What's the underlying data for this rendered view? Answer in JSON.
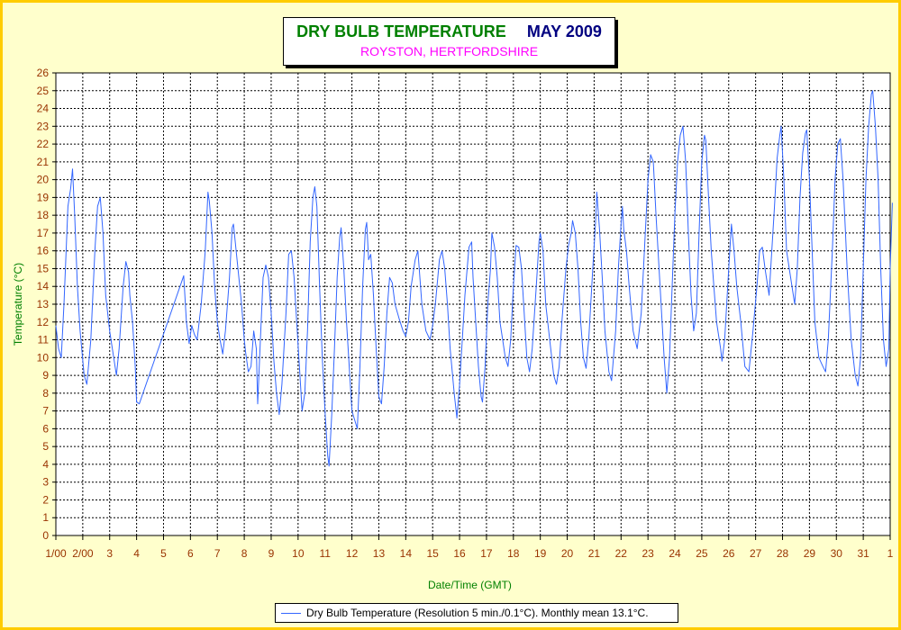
{
  "colors": {
    "frame_border": "#ffcc00",
    "frame_fill": "#ffffcc",
    "series_line": "#3366ff",
    "title_green": "#008000",
    "title_navy": "#000080",
    "subtitle_magenta": "#ff00ff",
    "axis_tick_text": "#993300"
  },
  "chart_data": {
    "type": "line",
    "title": "DRY BULB TEMPERATURE",
    "title_month": "MAY 2009",
    "subtitle": "ROYSTON, HERTFORDSHIRE",
    "xlabel": "Date/Time (GMT)",
    "ylabel": "Temperature (°C)",
    "ylim": [
      0,
      26
    ],
    "xlim": [
      0,
      31
    ],
    "grid": true,
    "legend_position": "bottom-center",
    "yticks": [
      "0",
      "1",
      "2",
      "3",
      "4",
      "5",
      "6",
      "7",
      "8",
      "9",
      "10",
      "11",
      "12",
      "13",
      "14",
      "15",
      "16",
      "17",
      "18",
      "19",
      "20",
      "21",
      "22",
      "23",
      "24",
      "25",
      "26"
    ],
    "xticks": [
      "1/00",
      "2/00",
      "3",
      "4",
      "5",
      "6",
      "7",
      "8",
      "9",
      "10",
      "11",
      "12",
      "13",
      "14",
      "15",
      "16",
      "17",
      "18",
      "19",
      "20",
      "21",
      "22",
      "23",
      "24",
      "25",
      "26",
      "27",
      "28",
      "29",
      "30",
      "31",
      "1"
    ],
    "series": [
      {
        "name": "Dry Bulb Temperature (Resolution 5 min./0.1°C). Monthly mean 13.1°C.",
        "x_unit": "days since 1 May 00:00 GMT",
        "points": [
          [
            0.0,
            11.8
          ],
          [
            0.1,
            10.5
          ],
          [
            0.2,
            10.0
          ],
          [
            0.3,
            13
          ],
          [
            0.45,
            18.5
          ],
          [
            0.55,
            19.5
          ],
          [
            0.62,
            20.6
          ],
          [
            0.7,
            18
          ],
          [
            0.8,
            14
          ],
          [
            0.9,
            11.5
          ],
          [
            1.05,
            9.0
          ],
          [
            1.15,
            8.5
          ],
          [
            1.3,
            11
          ],
          [
            1.45,
            16
          ],
          [
            1.55,
            18.5
          ],
          [
            1.65,
            19.0
          ],
          [
            1.75,
            17
          ],
          [
            1.85,
            13.5
          ],
          [
            2.0,
            11.5
          ],
          [
            2.15,
            10.0
          ],
          [
            2.25,
            9.0
          ],
          [
            2.35,
            10.5
          ],
          [
            2.5,
            14
          ],
          [
            2.6,
            15.4
          ],
          [
            2.7,
            14.8
          ],
          [
            2.75,
            13.5
          ],
          [
            2.85,
            12
          ],
          [
            2.95,
            9.5
          ],
          [
            3.0,
            7.5
          ],
          [
            3.1,
            7.4
          ],
          [
            4.75,
            14.6
          ],
          [
            4.85,
            12
          ],
          [
            4.95,
            10.8
          ],
          [
            5.05,
            11.8
          ],
          [
            5.15,
            11.3
          ],
          [
            5.25,
            11.0
          ],
          [
            5.4,
            13
          ],
          [
            5.55,
            16
          ],
          [
            5.65,
            19.3
          ],
          [
            5.7,
            18.8
          ],
          [
            5.8,
            17
          ],
          [
            5.9,
            14
          ],
          [
            6.0,
            12
          ],
          [
            6.1,
            11
          ],
          [
            6.2,
            10.2
          ],
          [
            6.3,
            11.5
          ],
          [
            6.45,
            14.5
          ],
          [
            6.55,
            17.3
          ],
          [
            6.6,
            17.5
          ],
          [
            6.7,
            16
          ],
          [
            6.8,
            14.5
          ],
          [
            6.9,
            13
          ],
          [
            7.0,
            11
          ],
          [
            7.05,
            10.3
          ],
          [
            7.15,
            9.2
          ],
          [
            7.25,
            9.5
          ],
          [
            7.35,
            11.5
          ],
          [
            7.45,
            10.5
          ],
          [
            7.5,
            7.4
          ],
          [
            7.6,
            11
          ],
          [
            7.7,
            14.5
          ],
          [
            7.8,
            15.2
          ],
          [
            7.9,
            14.5
          ],
          [
            8.0,
            12.5
          ],
          [
            8.1,
            9.8
          ],
          [
            8.2,
            8.0
          ],
          [
            8.3,
            6.8
          ],
          [
            8.4,
            8.5
          ],
          [
            8.55,
            12.5
          ],
          [
            8.65,
            15.8
          ],
          [
            8.75,
            16.0
          ],
          [
            8.85,
            14.5
          ],
          [
            8.95,
            12.0
          ],
          [
            9.05,
            9.5
          ],
          [
            9.15,
            7.0
          ],
          [
            9.25,
            8.0
          ],
          [
            9.35,
            11.5
          ],
          [
            9.45,
            16.5
          ],
          [
            9.55,
            19.0
          ],
          [
            9.62,
            19.6
          ],
          [
            9.7,
            18.5
          ],
          [
            9.8,
            14
          ],
          [
            9.9,
            10
          ],
          [
            10.0,
            7
          ],
          [
            10.1,
            4.5
          ],
          [
            10.15,
            3.9
          ],
          [
            10.25,
            6.8
          ],
          [
            10.35,
            10.5
          ],
          [
            10.45,
            14.5
          ],
          [
            10.55,
            16.8
          ],
          [
            10.6,
            17.3
          ],
          [
            10.7,
            15
          ],
          [
            10.8,
            12
          ],
          [
            10.9,
            9.5
          ],
          [
            11.0,
            7.0
          ],
          [
            11.1,
            6.5
          ],
          [
            11.2,
            6.0
          ],
          [
            11.3,
            9.5
          ],
          [
            11.4,
            14
          ],
          [
            11.5,
            17.2
          ],
          [
            11.55,
            17.6
          ],
          [
            11.62,
            15.5
          ],
          [
            11.7,
            15.8
          ],
          [
            11.8,
            13.5
          ],
          [
            11.9,
            10.5
          ],
          [
            12.0,
            7.8
          ],
          [
            12.1,
            7.4
          ],
          [
            12.2,
            9.5
          ],
          [
            12.3,
            12.5
          ],
          [
            12.4,
            14.5
          ],
          [
            12.5,
            14.2
          ],
          [
            12.6,
            13
          ],
          [
            12.75,
            12.2
          ],
          [
            12.9,
            11.5
          ],
          [
            13.0,
            11.2
          ],
          [
            13.1,
            12
          ],
          [
            13.2,
            14
          ],
          [
            13.35,
            15.5
          ],
          [
            13.45,
            16.0
          ],
          [
            13.5,
            15
          ],
          [
            13.6,
            13
          ],
          [
            13.75,
            11.5
          ],
          [
            13.9,
            11.0
          ],
          [
            14.0,
            11.8
          ],
          [
            14.1,
            13
          ],
          [
            14.25,
            15.5
          ],
          [
            14.35,
            16.0
          ],
          [
            14.45,
            15
          ],
          [
            14.55,
            13
          ],
          [
            14.65,
            10.5
          ],
          [
            14.8,
            8
          ],
          [
            14.9,
            6.6
          ],
          [
            15.0,
            8.5
          ],
          [
            15.1,
            11
          ],
          [
            15.2,
            13.5
          ],
          [
            15.35,
            16.2
          ],
          [
            15.45,
            16.5
          ],
          [
            15.5,
            14.5
          ],
          [
            15.6,
            12
          ],
          [
            15.7,
            9.5
          ],
          [
            15.8,
            7.8
          ],
          [
            15.85,
            7.5
          ],
          [
            15.95,
            9.5
          ],
          [
            16.05,
            13
          ],
          [
            16.15,
            15
          ],
          [
            16.2,
            17
          ],
          [
            16.3,
            16.2
          ],
          [
            16.4,
            14.5
          ],
          [
            16.5,
            12
          ],
          [
            16.6,
            11
          ],
          [
            16.7,
            10.0
          ],
          [
            16.8,
            9.5
          ],
          [
            16.9,
            11
          ],
          [
            17.0,
            14
          ],
          [
            17.1,
            16.3
          ],
          [
            17.2,
            16.2
          ],
          [
            17.3,
            15
          ],
          [
            17.4,
            12.5
          ],
          [
            17.5,
            10.0
          ],
          [
            17.6,
            9.2
          ],
          [
            17.7,
            10.5
          ],
          [
            17.85,
            14
          ],
          [
            17.95,
            16.5
          ],
          [
            18.0,
            17.0
          ],
          [
            18.1,
            16
          ],
          [
            18.2,
            13
          ],
          [
            18.35,
            11
          ],
          [
            18.5,
            9
          ],
          [
            18.6,
            8.5
          ],
          [
            18.7,
            9.5
          ],
          [
            18.8,
            12
          ],
          [
            18.95,
            15
          ],
          [
            19.05,
            16.3
          ],
          [
            19.15,
            17
          ],
          [
            19.2,
            17.7
          ],
          [
            19.3,
            17
          ],
          [
            19.4,
            15
          ],
          [
            19.5,
            12
          ],
          [
            19.6,
            10
          ],
          [
            19.7,
            9.4
          ],
          [
            19.8,
            11
          ],
          [
            19.95,
            15
          ],
          [
            20.05,
            17.5
          ],
          [
            20.1,
            19.3
          ],
          [
            20.2,
            17.2
          ],
          [
            20.3,
            14.5
          ],
          [
            20.4,
            11.5
          ],
          [
            20.55,
            9.2
          ],
          [
            20.65,
            8.7
          ],
          [
            20.8,
            11.5
          ],
          [
            20.9,
            15
          ],
          [
            21.0,
            17.5
          ],
          [
            21.05,
            18.5
          ],
          [
            21.1,
            17.2
          ],
          [
            21.2,
            16
          ],
          [
            21.3,
            14
          ],
          [
            21.45,
            11.5
          ],
          [
            21.6,
            10.5
          ],
          [
            21.75,
            12.5
          ],
          [
            21.9,
            17
          ],
          [
            22.0,
            20
          ],
          [
            22.1,
            21.4
          ],
          [
            22.2,
            21.0
          ],
          [
            22.3,
            18
          ],
          [
            22.45,
            14
          ],
          [
            22.6,
            10
          ],
          [
            22.7,
            8.0
          ],
          [
            22.8,
            10
          ],
          [
            22.9,
            14
          ],
          [
            23.0,
            18
          ],
          [
            23.1,
            21
          ],
          [
            23.2,
            22.5
          ],
          [
            23.3,
            23.0
          ],
          [
            23.4,
            21
          ],
          [
            23.5,
            17
          ],
          [
            23.6,
            13.5
          ],
          [
            23.7,
            11.5
          ],
          [
            23.8,
            12.5
          ],
          [
            23.9,
            17
          ],
          [
            24.0,
            21
          ],
          [
            24.1,
            22.5
          ],
          [
            24.15,
            22.2
          ],
          [
            24.25,
            19
          ],
          [
            24.35,
            16
          ],
          [
            24.45,
            14
          ],
          [
            24.55,
            12
          ],
          [
            24.7,
            10.5
          ],
          [
            24.75,
            9.8
          ],
          [
            24.85,
            11
          ],
          [
            25.0,
            15
          ],
          [
            25.1,
            17.5
          ],
          [
            25.2,
            16
          ],
          [
            25.3,
            14
          ],
          [
            25.45,
            12
          ],
          [
            25.6,
            9.5
          ],
          [
            25.75,
            9.2
          ],
          [
            25.9,
            11.5
          ],
          [
            26.05,
            14
          ],
          [
            26.15,
            16
          ],
          [
            26.25,
            16.2
          ],
          [
            26.35,
            15
          ],
          [
            26.5,
            13.5
          ],
          [
            26.6,
            16
          ],
          [
            26.7,
            18.5
          ],
          [
            26.8,
            21.2
          ],
          [
            26.9,
            22.5
          ],
          [
            26.95,
            23.0
          ],
          [
            27.05,
            20
          ],
          [
            27.15,
            16
          ],
          [
            27.25,
            15
          ],
          [
            27.35,
            14
          ],
          [
            27.45,
            13
          ],
          [
            27.55,
            15
          ],
          [
            27.65,
            19
          ],
          [
            27.75,
            21.5
          ],
          [
            27.85,
            22.6
          ],
          [
            27.9,
            22.8
          ],
          [
            28.0,
            20
          ],
          [
            28.1,
            16
          ],
          [
            28.2,
            12
          ],
          [
            28.35,
            10.0
          ],
          [
            28.5,
            9.5
          ],
          [
            28.6,
            9.2
          ],
          [
            28.7,
            11
          ],
          [
            28.85,
            16
          ],
          [
            28.95,
            20
          ],
          [
            29.05,
            22
          ],
          [
            29.15,
            22.3
          ],
          [
            29.25,
            20
          ],
          [
            29.4,
            15
          ],
          [
            29.55,
            11
          ],
          [
            29.7,
            9
          ],
          [
            29.8,
            8.4
          ],
          [
            29.9,
            10
          ],
          [
            30.0,
            15
          ],
          [
            30.1,
            20
          ],
          [
            30.2,
            23
          ],
          [
            30.3,
            24.8
          ],
          [
            30.35,
            25.0
          ],
          [
            30.45,
            23
          ],
          [
            30.55,
            20
          ],
          [
            30.65,
            15
          ],
          [
            30.75,
            11
          ],
          [
            30.85,
            9.5
          ],
          [
            30.95,
            10.5
          ],
          [
            31.0,
            15
          ],
          [
            31.08,
            18.7
          ]
        ]
      }
    ]
  }
}
